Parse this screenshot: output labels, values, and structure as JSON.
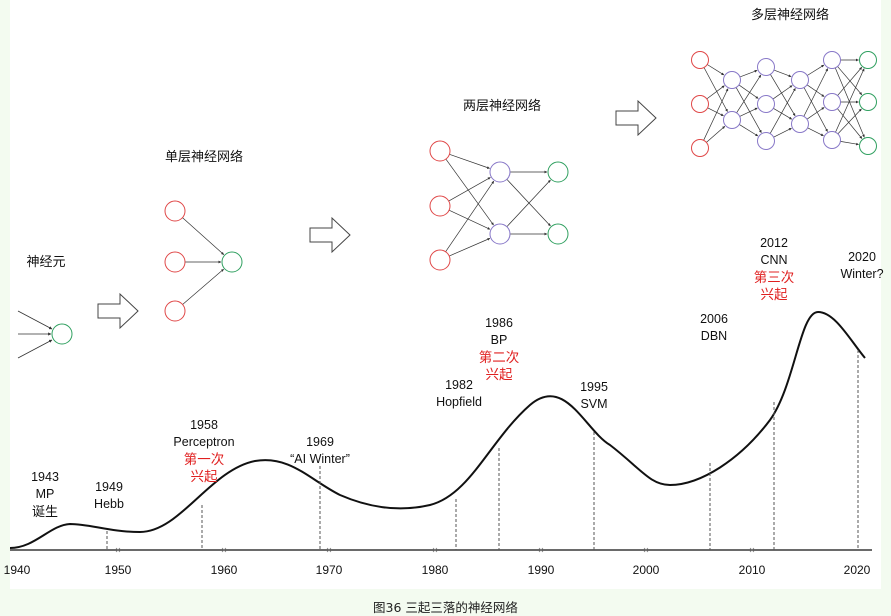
{
  "caption": "图36  三起三落的神经网络",
  "network_titles": {
    "neuron": "神经元",
    "single_layer": "单层神经网络",
    "two_layer": "两层神经网络",
    "multi_layer": "多层神经网络"
  },
  "axis": {
    "ticks": [
      "1940",
      "1950",
      "1960",
      "1970",
      "1980",
      "1990",
      "2000",
      "2010",
      "2020"
    ]
  },
  "events": [
    {
      "year": "1943",
      "name": "MP",
      "note": "诞生"
    },
    {
      "year": "1949",
      "name": "Hebb"
    },
    {
      "year": "1958",
      "name": "Perceptron",
      "highlight": "第一次\n兴起"
    },
    {
      "year": "1969",
      "name": "“AI Winter”"
    },
    {
      "year": "1982",
      "name": "Hopfield"
    },
    {
      "year": "1986",
      "name": "BP",
      "highlight": "第二次\n兴起"
    },
    {
      "year": "1995",
      "name": "SVM"
    },
    {
      "year": "2006",
      "name": "DBN"
    },
    {
      "year": "2012",
      "name": "CNN",
      "highlight": "第三次\n兴起"
    },
    {
      "year": "2020",
      "name": "Winter?"
    }
  ],
  "colors": {
    "input_node": "#e04848",
    "hidden_node": "#8878c8",
    "output_node": "#30a060",
    "highlight_text": "#e02020",
    "background": "#f3fbf0"
  }
}
